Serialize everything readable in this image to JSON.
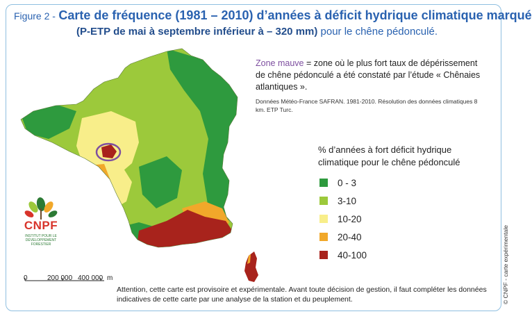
{
  "title": {
    "figure_label": "Figure 2 -",
    "main": "Carte de fréquence (1981 – 2010) d’années à déficit hydrique climatique marqué",
    "condition": "(P-ETP de mai à septembre inférieur à – 320 mm)",
    "suffix": "pour le chêne pédonculé."
  },
  "zone_note": {
    "highlight": "Zone mauve",
    "text": "= zone où le plus fort taux de dépérissement de chêne pédonculé a été constaté par l’étude « Chênaies atlantiques »."
  },
  "source": "Données Météo-France SAFRAN. 1981-2010. Résolution des données climatiques 8 km. ETP Turc.",
  "legend": {
    "title": "% d’années à fort déficit hydrique climatique pour le chêne pédonculé",
    "items": [
      {
        "label": "0 - 3",
        "color": "#2e9a3e"
      },
      {
        "label": "3-10",
        "color": "#9cc93b"
      },
      {
        "label": "10-20",
        "color": "#f8ee8a"
      },
      {
        "label": "20-40",
        "color": "#f1a82a"
      },
      {
        "label": "40-100",
        "color": "#a8231c"
      }
    ]
  },
  "scale_bar": {
    "labels": [
      "0",
      "200 000",
      "400 000",
      "m"
    ]
  },
  "warning": "Attention, cette carte est provisoire et expérimentale. Avant toute décision de gestion, il faut compléter les données indicatives de cette carte par une analyse de la station et du peuplement.",
  "copyright": "© CNPF - carte expérimentale",
  "logo": {
    "name": "CNPF",
    "subtitle": "INSTITUT POUR LE DÉVELOPPEMENT FORESTIER"
  },
  "colors": {
    "title_blue": "#2a62b0",
    "mauve": "#7e4fa0",
    "frame": "#8fbfe0"
  }
}
